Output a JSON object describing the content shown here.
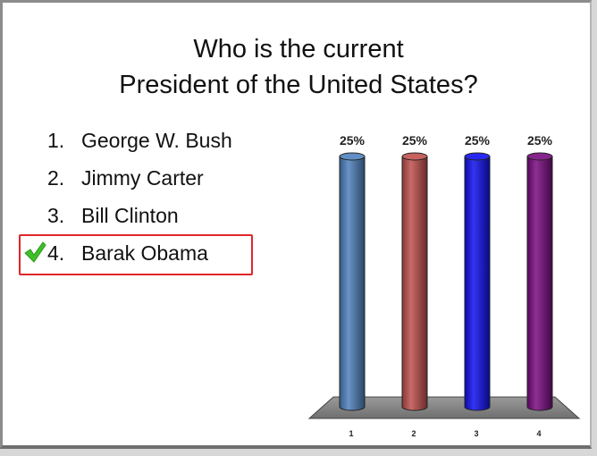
{
  "slide": {
    "title_line1": "Who is the current",
    "title_line2": "President of the United States?"
  },
  "answers": [
    {
      "number": "1.",
      "text": "George W. Bush",
      "correct": false
    },
    {
      "number": "2.",
      "text": "Jimmy Carter",
      "correct": false
    },
    {
      "number": "3.",
      "text": "Bill Clinton",
      "correct": false
    },
    {
      "number": "4.",
      "text": "Barak Obama",
      "correct": true
    }
  ],
  "icons": {
    "correct_marker": "check-icon"
  },
  "colors": {
    "correct_box": "#e0262a",
    "check": "#3fbf2a"
  },
  "chart_data": {
    "type": "bar",
    "categories": [
      "1",
      "2",
      "3",
      "4"
    ],
    "values": [
      25,
      25,
      25,
      25
    ],
    "value_labels": [
      "25%",
      "25%",
      "25%",
      "25%"
    ],
    "ylim": [
      0,
      25
    ],
    "grid": false,
    "colors": [
      "#4f81bd",
      "#c0504d",
      "#1010f0",
      "#7a0a80"
    ],
    "bar_shape": "3d-cylinder"
  }
}
